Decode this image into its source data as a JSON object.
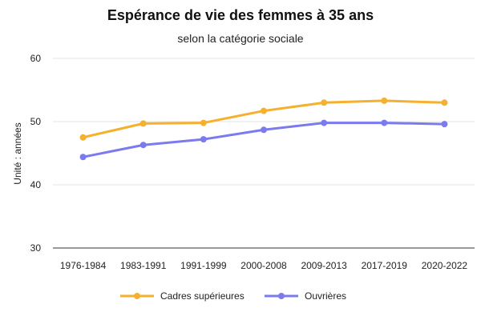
{
  "chart_data": {
    "type": "line",
    "title": "Espérance de vie des femmes à 35 ans",
    "subtitle": "selon la catégorie sociale",
    "ylabel": "Unité : années",
    "xlabel": "",
    "categories": [
      "1976-1984",
      "1983-1991",
      "1991-1999",
      "2000-2008",
      "2009-2013",
      "2017-2019",
      "2020-2022"
    ],
    "ylim": [
      30,
      60
    ],
    "yticks": [
      30,
      40,
      50,
      60
    ],
    "grid": true,
    "legend_position": "bottom",
    "series": [
      {
        "name": "Cadres supérieures",
        "color": "#F5B02E",
        "values": [
          47.5,
          49.7,
          49.8,
          51.7,
          53.0,
          53.3,
          53.0
        ]
      },
      {
        "name": "Ouvrières",
        "color": "#7B7BEF",
        "values": [
          44.4,
          46.3,
          47.2,
          48.7,
          49.8,
          49.8,
          49.6
        ]
      }
    ]
  }
}
